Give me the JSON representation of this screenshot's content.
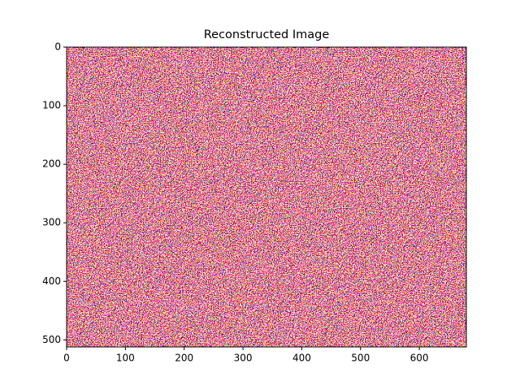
{
  "chart_data": {
    "type": "image",
    "title": "Reconstructed Image",
    "xlim": [
      0,
      680
    ],
    "xticks": [
      0,
      100,
      200,
      300,
      400,
      500,
      600
    ],
    "ylim": [
      512,
      0
    ],
    "yticks": [
      0,
      100,
      200,
      300,
      400,
      500
    ]
  }
}
